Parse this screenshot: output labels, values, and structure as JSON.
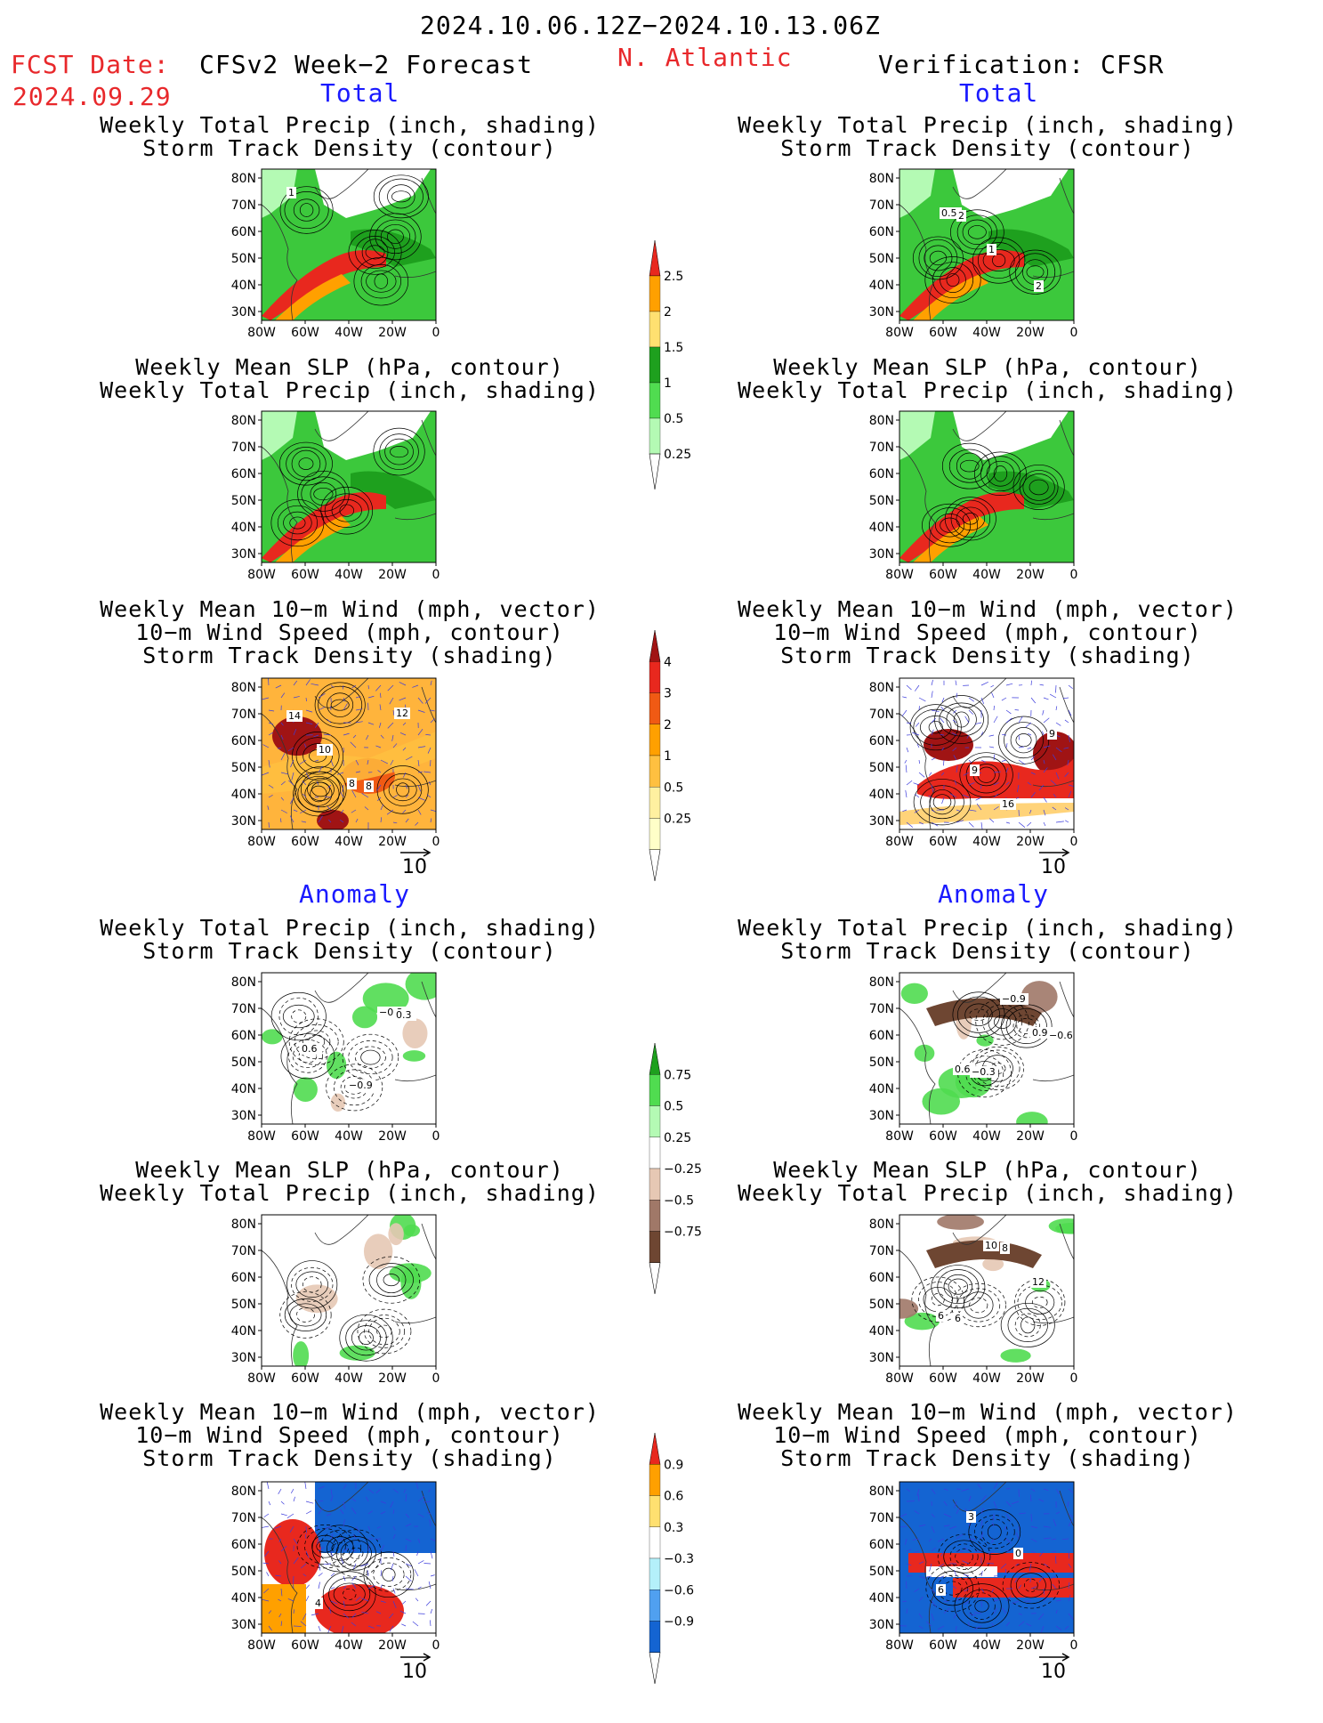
{
  "header": {
    "date_range": "2024.10.06.12Z−2024.10.13.06Z",
    "fcst_label": "FCST Date:",
    "fcst_date": "2024.09.29",
    "forecast_title": "CFSv2 Week−2 Forecast",
    "region": "N. Atlantic",
    "verification": "Verification: CFSR"
  },
  "sections": {
    "total": "Total",
    "anomaly": "Anomaly"
  },
  "panel_titles": {
    "precip_storm": [
      "Weekly Total Precip (inch, shading)",
      "Storm Track Density (contour)"
    ],
    "slp_precip": [
      "Weekly Mean SLP (hPa, contour)",
      "Weekly Total Precip (inch, shading)"
    ],
    "wind_storm": [
      "Weekly Mean 10−m Wind (mph, vector)",
      "10−m Wind Speed (mph, contour)",
      "Storm Track Density (shading)"
    ]
  },
  "axes": {
    "lat_ticks": [
      "80N",
      "70N",
      "60N",
      "50N",
      "40N",
      "30N"
    ],
    "lon_ticks": [
      "80W",
      "60W",
      "40W",
      "20W",
      "0"
    ]
  },
  "vector_ref": "10",
  "colorbars": {
    "precip_total": {
      "labels": [
        "2.5",
        "2",
        "1.5",
        "1",
        "0.5",
        "0.25"
      ],
      "colors": [
        "#e8281e",
        "#ffa000",
        "#ffe070",
        "#1ea01e",
        "#50dc50",
        "#b4fab4"
      ]
    },
    "storm_total": {
      "labels": [
        "4",
        "3",
        "2",
        "1",
        "0.5",
        "0.25"
      ],
      "colors": [
        "#a01414",
        "#e8281e",
        "#f05a14",
        "#ffa000",
        "#ffc040",
        "#fff0a0",
        "#ffffc8"
      ]
    },
    "precip_anom": {
      "labels": [
        "0.75",
        "0.5",
        "0.25",
        "−0.25",
        "−0.5",
        "−0.75"
      ],
      "colors": [
        "#1ea01e",
        "#50dc50",
        "#b4fab4",
        "#ffffff",
        "#e6c8b4",
        "#a07868",
        "#6e4632"
      ]
    },
    "storm_anom": {
      "labels": [
        "0.9",
        "0.6",
        "0.3",
        "−0.3",
        "−0.6",
        "−0.9"
      ],
      "colors": [
        "#e8281e",
        "#ffa000",
        "#ffe070",
        "#ffffff",
        "#b4f0fa",
        "#50a0f0",
        "#1464d2"
      ]
    }
  },
  "panels": [
    {
      "id": "fc-total-precip",
      "contour_labels": [
        "1"
      ]
    },
    {
      "id": "ver-total-precip",
      "contour_labels": [
        "0.5",
        "1",
        "2",
        "2"
      ]
    },
    {
      "id": "fc-total-slp",
      "contour_labels": []
    },
    {
      "id": "ver-total-slp",
      "contour_labels": []
    },
    {
      "id": "fc-total-wind",
      "contour_labels": [
        "8",
        "12",
        "10",
        "8",
        "14"
      ]
    },
    {
      "id": "ver-total-wind",
      "contour_labels": [
        "16",
        "9",
        "9"
      ]
    },
    {
      "id": "fc-anom-precip",
      "contour_labels": [
        "−0.3",
        "0.6",
        "−0.9",
        "0.3"
      ]
    },
    {
      "id": "ver-anom-precip",
      "contour_labels": [
        "0.9",
        "0.6",
        "−0.9",
        "−0.6",
        "−0.3"
      ]
    },
    {
      "id": "fc-anom-slp",
      "contour_labels": []
    },
    {
      "id": "ver-anom-slp",
      "contour_labels": [
        "6",
        "10",
        "12",
        "6",
        "8"
      ]
    },
    {
      "id": "fc-anom-wind",
      "contour_labels": [
        "4"
      ]
    },
    {
      "id": "ver-anom-wind",
      "contour_labels": [
        "3",
        "0",
        "6"
      ]
    }
  ],
  "colors": {
    "red_text": "#e8282b",
    "blue_text": "#1a1aff"
  }
}
